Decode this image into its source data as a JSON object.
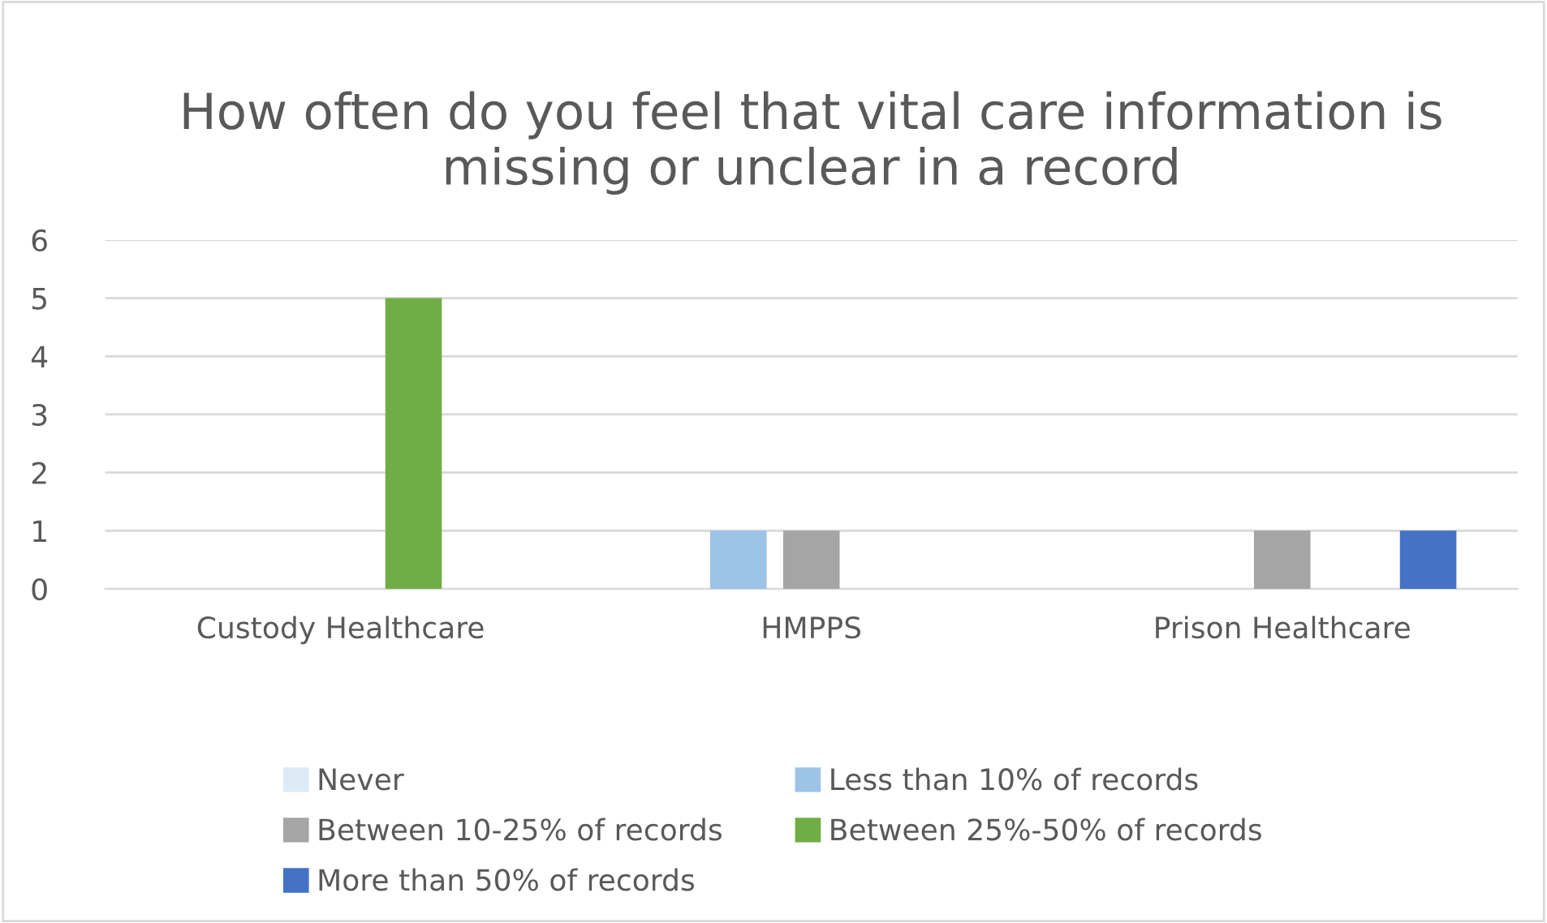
{
  "chart_data": {
    "type": "bar",
    "title": "How often do you feel that vital care information is missing or unclear in a record",
    "categories": [
      "Custody Healthcare",
      "HMPPS",
      "Prison Healthcare"
    ],
    "series": [
      {
        "name": "Never",
        "color": "#ddebf7",
        "values": [
          0,
          0,
          0
        ]
      },
      {
        "name": "Less than 10% of records",
        "color": "#9dc3e6",
        "values": [
          0,
          1,
          0
        ]
      },
      {
        "name": "Between 10-25% of records",
        "color": "#a5a5a5",
        "values": [
          0,
          1,
          1
        ]
      },
      {
        "name": "Between 25%-50% of records",
        "color": "#70ad47",
        "values": [
          5,
          0,
          0
        ]
      },
      {
        "name": "More than 50% of records",
        "color": "#4472c4",
        "values": [
          0,
          0,
          1
        ]
      }
    ],
    "ylim": [
      0,
      6
    ],
    "yticks": [
      0,
      1,
      2,
      3,
      4,
      5,
      6
    ],
    "grid": "y",
    "legend": "bottom"
  }
}
